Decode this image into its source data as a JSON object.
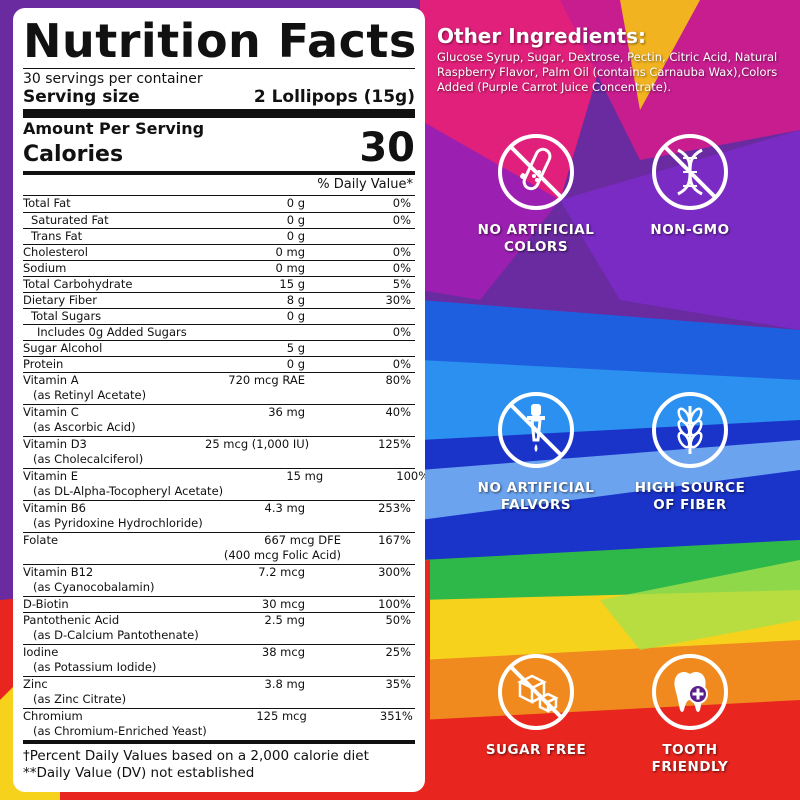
{
  "colors": {
    "panel_bg": "#ffffff",
    "text": "#111111",
    "icon_stroke": "#ffffff"
  },
  "nutrition": {
    "title": "Nutrition Facts",
    "servings": "30 servings per container",
    "serving_size_label": "Serving size",
    "serving_size_value": "2 Lollipops (15g)",
    "amount_per_serving": "Amount Per Serving",
    "calories_label": "Calories",
    "calories_value": "30",
    "dv_header": "% Daily Value*",
    "rows": [
      {
        "name": "Total Fat",
        "amount": "0 g",
        "dv": "0%",
        "indent": 0
      },
      {
        "name": "Saturated Fat",
        "amount": "0 g",
        "dv": "0%",
        "indent": 1
      },
      {
        "name": "Trans Fat",
        "amount": "0 g",
        "dv": "",
        "indent": 1
      },
      {
        "name": "Cholesterol",
        "amount": "0 mg",
        "dv": "0%",
        "indent": 0
      },
      {
        "name": "Sodium",
        "amount": "0 mg",
        "dv": "0%",
        "indent": 0
      },
      {
        "name": "Total Carbohydrate",
        "amount": "15 g",
        "dv": "5%",
        "indent": 0
      },
      {
        "name": "Dietary Fiber",
        "amount": "8 g",
        "dv": "30%",
        "indent": 0
      },
      {
        "name": "Total Sugars",
        "amount": "0 g",
        "dv": "",
        "indent": 1
      },
      {
        "name": "Includes 0g Added Sugars",
        "amount": "",
        "dv": "0%",
        "indent": 2
      },
      {
        "name": "Sugar Alcohol",
        "amount": "5 g",
        "dv": "",
        "indent": 0
      },
      {
        "name": "Protein",
        "amount": "0 g",
        "dv": "0%",
        "indent": 0
      }
    ],
    "vitamins": [
      {
        "name": "Vitamin A",
        "sub": "(as Retinyl Acetate)",
        "amount": "720 mcg RAE",
        "amount_sub": "",
        "dv": "80%"
      },
      {
        "name": "Vitamin C",
        "sub": "(as Ascorbic Acid)",
        "amount": "36 mg",
        "amount_sub": "",
        "dv": "40%"
      },
      {
        "name": "Vitamin D3",
        "sub": "(as Cholecalciferol)",
        "amount": "25 mcg (1,000 IU)",
        "amount_sub": "",
        "dv": "125%"
      },
      {
        "name": "Vitamin E",
        "sub": "(as DL-Alpha-Tocopheryl Acetate)",
        "amount": "15 mg",
        "amount_sub": "",
        "dv": "100%"
      },
      {
        "name": "Vitamin B6",
        "sub": "(as Pyridoxine Hydrochloride)",
        "amount": "4.3 mg",
        "amount_sub": "",
        "dv": "253%"
      },
      {
        "name": "Folate",
        "sub": "",
        "amount": "667 mcg DFE",
        "amount_sub": "(400 mcg Folic Acid)",
        "dv": "167%"
      },
      {
        "name": "Vitamin B12",
        "sub": "(as Cyanocobalamin)",
        "amount": "7.2 mcg",
        "amount_sub": "",
        "dv": "300%"
      }
    ],
    "biotin": {
      "name": "D-Biotin",
      "amount": "30 mcg",
      "dv": "100%"
    },
    "minerals": [
      {
        "name": "Pantothenic Acid",
        "sub": "(as D-Calcium Pantothenate)",
        "amount": "2.5 mg",
        "dv": "50%"
      },
      {
        "name": "Iodine",
        "sub": "(as Potassium Iodide)",
        "amount": "38 mcg",
        "dv": "25%"
      },
      {
        "name": "Zinc",
        "sub": "(as Zinc Citrate)",
        "amount": "3.8 mg",
        "dv": "35%"
      },
      {
        "name": "Chromium",
        "sub": "(as Chromium-Enriched Yeast)",
        "amount": "125 mcg",
        "dv": "351%"
      }
    ],
    "footnote_1": "†Percent Daily Values based on a 2,000 calorie diet",
    "footnote_2": "**Daily Value (DV) not established"
  },
  "other_ingredients": {
    "title": "Other Ingredients:",
    "text": "Glucose Syrup, Sugar, Dextrose, Pectin, Citric Acid, Natural Raspberry Flavor, Palm Oil (contains Carnauba Wax),Colors Added (Purple Carrot Juice Concentrate)."
  },
  "features": [
    {
      "icon": "test-tube-crossed-icon",
      "label_1": "NO ARTIFICIAL",
      "label_2": "COLORS"
    },
    {
      "icon": "dna-crossed-icon",
      "label_1": "NON-GMO",
      "label_2": ""
    },
    {
      "icon": "dropper-crossed-icon",
      "label_1": "NO ARTIFICIAL",
      "label_2": "FALVORS"
    },
    {
      "icon": "wheat-icon",
      "label_1": "HIGH SOURCE",
      "label_2": "OF FIBER"
    },
    {
      "icon": "sugar-cube-crossed-icon",
      "label_1": "SUGAR FREE",
      "label_2": ""
    },
    {
      "icon": "tooth-icon",
      "label_1": "TOOTH",
      "label_2": "FRIENDLY"
    }
  ]
}
